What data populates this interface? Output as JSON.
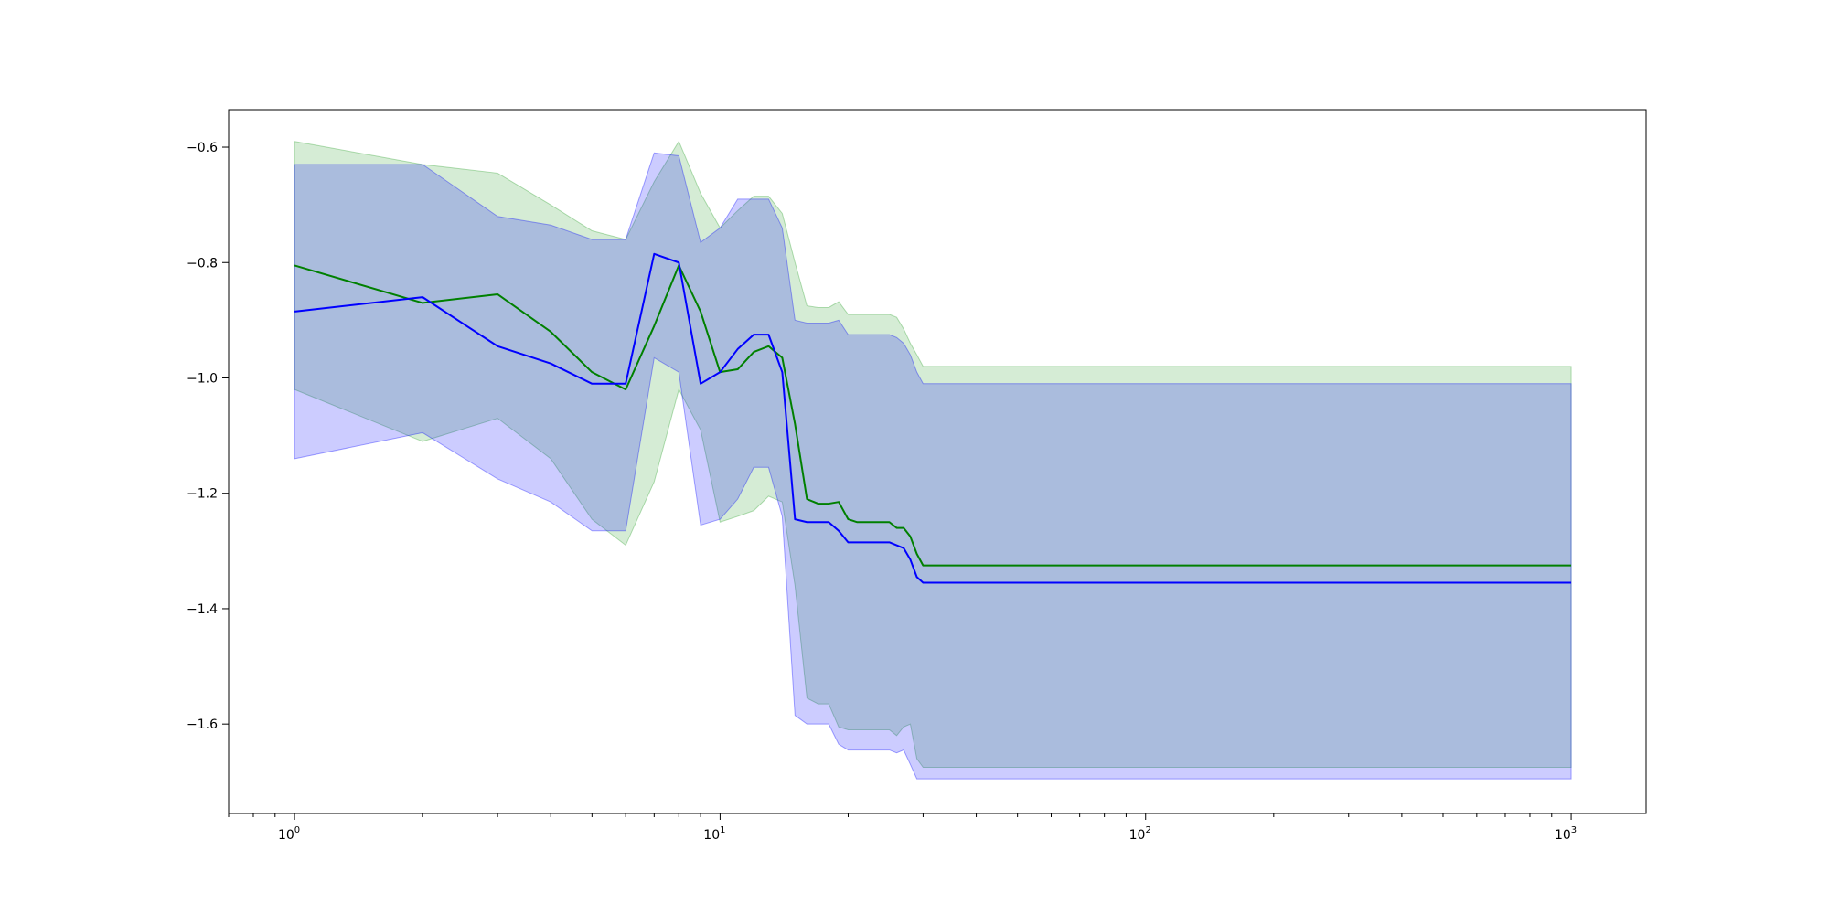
{
  "chart_data": {
    "type": "line",
    "title": "",
    "xlabel": "",
    "ylabel": "",
    "xscale": "log",
    "xlim": [
      0.7,
      1500
    ],
    "ylim": [
      -1.755,
      -0.535
    ],
    "grid": false,
    "legend": "none",
    "x_ticks": [
      {
        "value": 1,
        "base": "10",
        "exp": "0"
      },
      {
        "value": 10,
        "base": "10",
        "exp": "1"
      },
      {
        "value": 100,
        "base": "10",
        "exp": "2"
      },
      {
        "value": 1000,
        "base": "10",
        "exp": "3"
      }
    ],
    "y_ticks": [
      {
        "value": -0.6,
        "label": "−0.6"
      },
      {
        "value": -0.8,
        "label": "−0.8"
      },
      {
        "value": -1.0,
        "label": "−1.0"
      },
      {
        "value": -1.2,
        "label": "−1.2"
      },
      {
        "value": -1.4,
        "label": "−1.4"
      },
      {
        "value": -1.6,
        "label": "−1.6"
      }
    ],
    "series": [
      {
        "color": "#008000",
        "band_color": "#2ca02c",
        "x": [
          1,
          2,
          3,
          4,
          5,
          6,
          7,
          8,
          9,
          10,
          11,
          12,
          13,
          14,
          15,
          16,
          17,
          18,
          19,
          20,
          21,
          25,
          26,
          27,
          28,
          29,
          30,
          1000
        ],
        "mean": [
          -0.805,
          -0.87,
          -0.855,
          -0.92,
          -0.99,
          -1.02,
          -0.91,
          -0.805,
          -0.885,
          -0.99,
          -0.985,
          -0.955,
          -0.945,
          -0.965,
          -1.08,
          -1.21,
          -1.218,
          -1.218,
          -1.215,
          -1.245,
          -1.25,
          -1.25,
          -1.26,
          -1.26,
          -1.275,
          -1.305,
          -1.325,
          -1.325
        ],
        "upper": [
          -0.59,
          -0.63,
          -0.645,
          -0.7,
          -0.745,
          -0.76,
          -0.66,
          -0.59,
          -0.68,
          -0.74,
          -0.71,
          -0.685,
          -0.685,
          -0.715,
          -0.8,
          -0.875,
          -0.878,
          -0.878,
          -0.868,
          -0.89,
          -0.89,
          -0.89,
          -0.895,
          -0.915,
          -0.94,
          -0.96,
          -0.98,
          -0.98
        ],
        "lower": [
          -1.02,
          -1.11,
          -1.07,
          -1.14,
          -1.245,
          -1.29,
          -1.18,
          -1.02,
          -1.09,
          -1.25,
          -1.24,
          -1.23,
          -1.205,
          -1.215,
          -1.36,
          -1.555,
          -1.565,
          -1.565,
          -1.605,
          -1.61,
          -1.61,
          -1.61,
          -1.62,
          -1.605,
          -1.6,
          -1.66,
          -1.675,
          -1.675
        ]
      },
      {
        "color": "#0000ff",
        "band_color": "#0000ff",
        "x": [
          1,
          2,
          3,
          4,
          5,
          6,
          7,
          8,
          9,
          10,
          11,
          12,
          13,
          14,
          15,
          16,
          17,
          18,
          19,
          20,
          21,
          25,
          26,
          27,
          28,
          29,
          30,
          1000
        ],
        "mean": [
          -0.885,
          -0.86,
          -0.945,
          -0.975,
          -1.01,
          -1.01,
          -0.785,
          -0.8,
          -1.01,
          -0.99,
          -0.95,
          -0.925,
          -0.925,
          -0.99,
          -1.245,
          -1.25,
          -1.25,
          -1.25,
          -1.265,
          -1.285,
          -1.285,
          -1.285,
          -1.29,
          -1.295,
          -1.315,
          -1.345,
          -1.355,
          -1.355
        ],
        "upper": [
          -0.63,
          -0.63,
          -0.72,
          -0.735,
          -0.76,
          -0.76,
          -0.61,
          -0.615,
          -0.765,
          -0.74,
          -0.69,
          -0.69,
          -0.69,
          -0.74,
          -0.9,
          -0.905,
          -0.905,
          -0.905,
          -0.9,
          -0.925,
          -0.925,
          -0.925,
          -0.93,
          -0.94,
          -0.96,
          -0.99,
          -1.01,
          -1.01
        ],
        "lower": [
          -1.14,
          -1.095,
          -1.175,
          -1.215,
          -1.265,
          -1.265,
          -0.965,
          -0.99,
          -1.255,
          -1.245,
          -1.21,
          -1.155,
          -1.155,
          -1.24,
          -1.585,
          -1.6,
          -1.6,
          -1.6,
          -1.635,
          -1.645,
          -1.645,
          -1.645,
          -1.65,
          -1.645,
          -1.67,
          -1.695,
          -1.695,
          -1.695
        ]
      }
    ]
  }
}
